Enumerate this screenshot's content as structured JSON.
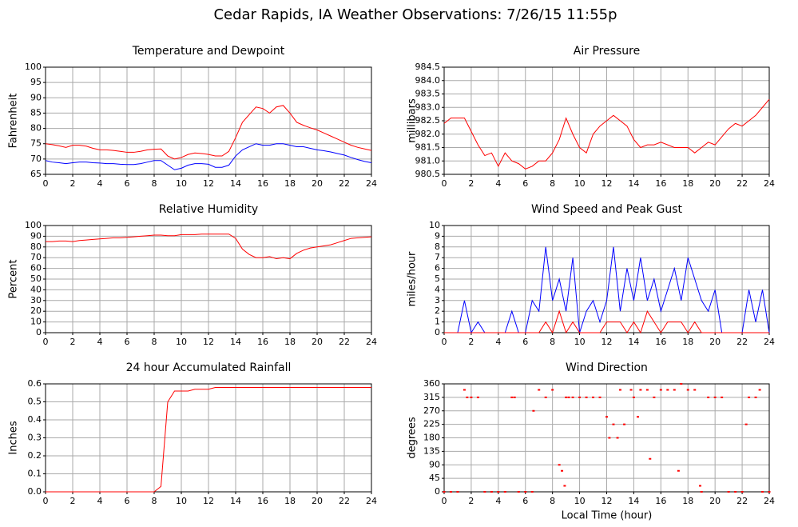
{
  "title": "Cedar Rapids, IA Weather Observations: 7/26/15 11:55p",
  "chart_data": [
    {
      "type": "line",
      "title": "Temperature and Dewpoint",
      "ylabel": "Fahrenheit",
      "x": [
        0,
        0.5,
        1,
        1.5,
        2,
        2.5,
        3,
        3.5,
        4,
        4.5,
        5,
        5.5,
        6,
        6.5,
        7,
        7.5,
        8,
        8.5,
        9,
        9.5,
        10,
        10.5,
        11,
        11.5,
        12,
        12.5,
        13,
        13.5,
        14,
        14.5,
        15,
        15.5,
        16,
        16.5,
        17,
        17.5,
        18,
        18.5,
        19,
        19.5,
        20,
        20.5,
        21,
        21.5,
        22,
        22.5,
        23,
        23.5,
        24
      ],
      "series": [
        {
          "color": "#ff0000",
          "values": [
            75,
            74.7,
            74.3,
            73.8,
            74.5,
            74.5,
            74.2,
            73.5,
            73,
            73,
            72.8,
            72.5,
            72.2,
            72.2,
            72.5,
            73,
            73.2,
            73.3,
            71,
            70,
            70.5,
            71.5,
            72,
            71.8,
            71.5,
            71,
            71,
            72.5,
            77,
            82,
            84.5,
            87,
            86.5,
            85,
            87,
            87.5,
            85,
            82,
            81,
            80.2,
            79.5,
            78.5,
            77.5,
            76.5,
            75.5,
            74.5,
            73.8,
            73.3,
            72.8
          ]
        },
        {
          "color": "#0000ff",
          "values": [
            69.5,
            69,
            68.8,
            68.5,
            68.8,
            69,
            69,
            68.8,
            68.7,
            68.5,
            68.5,
            68.3,
            68.2,
            68.2,
            68.5,
            69,
            69.5,
            69.5,
            68,
            66.5,
            67,
            68,
            68.5,
            68.5,
            68.3,
            67.3,
            67.3,
            68,
            71,
            73,
            74,
            75,
            74.5,
            74.5,
            75,
            75,
            74.5,
            74,
            74,
            73.5,
            73,
            72.7,
            72.3,
            71.8,
            71.3,
            70.5,
            69.8,
            69.2,
            68.8
          ]
        }
      ],
      "xlim": [
        0,
        24
      ],
      "xticks": [
        0,
        2,
        4,
        6,
        8,
        10,
        12,
        14,
        16,
        18,
        20,
        22,
        24
      ],
      "ylim": [
        65,
        100
      ],
      "yticks": [
        65,
        70,
        75,
        80,
        85,
        90,
        95,
        100
      ],
      "grid": true
    },
    {
      "type": "line",
      "title": "Air Pressure",
      "ylabel": "millibars",
      "x": [
        0,
        0.5,
        1,
        1.5,
        2,
        2.5,
        3,
        3.5,
        4,
        4.5,
        5,
        5.5,
        6,
        6.5,
        7,
        7.5,
        8,
        8.5,
        9,
        9.5,
        10,
        10.5,
        11,
        11.5,
        12,
        12.5,
        13,
        13.5,
        14,
        14.5,
        15,
        15.5,
        16,
        16.5,
        17,
        17.5,
        18,
        18.5,
        19,
        19.5,
        20,
        20.5,
        21,
        21.5,
        22,
        22.5,
        23,
        23.5,
        24
      ],
      "series": [
        {
          "color": "#ff0000",
          "values": [
            982.4,
            982.6,
            982.6,
            982.6,
            982.1,
            981.6,
            981.2,
            981.3,
            980.8,
            981.3,
            981,
            980.9,
            980.7,
            980.8,
            981,
            981,
            981.3,
            981.8,
            982.6,
            982,
            981.5,
            981.3,
            982,
            982.3,
            982.5,
            982.7,
            982.5,
            982.3,
            981.8,
            981.5,
            981.6,
            981.6,
            981.7,
            981.6,
            981.5,
            981.5,
            981.5,
            981.3,
            981.5,
            981.7,
            981.6,
            981.9,
            982.2,
            982.4,
            982.3,
            982.5,
            982.7,
            983,
            983.3
          ]
        }
      ],
      "xlim": [
        0,
        24
      ],
      "xticks": [
        0,
        2,
        4,
        6,
        8,
        10,
        12,
        14,
        16,
        18,
        20,
        22,
        24
      ],
      "ylim": [
        980.5,
        984.5
      ],
      "yticks": [
        980.5,
        {
          "value": 981,
          "label": "981.0"
        },
        981.5,
        {
          "value": 982,
          "label": "982.0"
        },
        982.5,
        {
          "value": 983,
          "label": "983.0"
        },
        983.5,
        {
          "value": 984,
          "label": "984.0"
        },
        984.5
      ],
      "grid": true
    },
    {
      "type": "line",
      "title": "Relative Humidity",
      "ylabel": "Percent",
      "x": [
        0,
        0.5,
        1,
        1.5,
        2,
        2.5,
        3,
        3.5,
        4,
        4.5,
        5,
        5.5,
        6,
        6.5,
        7,
        7.5,
        8,
        8.5,
        9,
        9.5,
        10,
        10.5,
        11,
        11.5,
        12,
        12.5,
        13,
        13.5,
        14,
        14.5,
        15,
        15.5,
        16,
        16.5,
        17,
        17.5,
        18,
        18.5,
        19,
        19.5,
        20,
        20.5,
        21,
        21.5,
        22,
        22.5,
        23,
        23.5,
        24
      ],
      "series": [
        {
          "color": "#ff0000",
          "values": [
            85,
            85,
            85.5,
            85.5,
            85,
            86,
            86.5,
            87,
            87.5,
            88,
            88.5,
            88.5,
            89,
            89.5,
            90,
            90.5,
            91,
            91,
            90.5,
            90.5,
            91.5,
            91.5,
            91.5,
            92,
            92,
            92,
            92,
            92,
            88,
            78,
            73,
            70,
            70,
            71,
            69,
            70,
            69,
            74,
            77,
            79,
            80,
            81,
            82,
            84,
            86,
            88,
            88.5,
            89,
            89.5
          ]
        }
      ],
      "xlim": [
        0,
        24
      ],
      "xticks": [
        0,
        2,
        4,
        6,
        8,
        10,
        12,
        14,
        16,
        18,
        20,
        22,
        24
      ],
      "ylim": [
        0,
        100
      ],
      "yticks": [
        0,
        10,
        20,
        30,
        40,
        50,
        60,
        70,
        80,
        90,
        100
      ],
      "grid": true
    },
    {
      "type": "line",
      "title": "Wind Speed and Peak Gust",
      "ylabel": "miles/hour",
      "x": [
        0,
        0.5,
        1,
        1.5,
        2,
        2.5,
        3,
        3.5,
        4,
        4.5,
        5,
        5.5,
        6,
        6.5,
        7,
        7.5,
        8,
        8.5,
        9,
        9.5,
        10,
        10.5,
        11,
        11.5,
        12,
        12.5,
        13,
        13.5,
        14,
        14.5,
        15,
        15.5,
        16,
        16.5,
        17,
        17.5,
        18,
        18.5,
        19,
        19.5,
        20,
        20.5,
        21,
        21.5,
        22,
        22.5,
        23,
        23.5,
        24
      ],
      "series": [
        {
          "color": "#0000ff",
          "values": [
            0,
            0,
            0,
            3,
            0,
            1,
            0,
            0,
            0,
            0,
            2,
            0,
            0,
            3,
            2,
            8,
            3,
            5,
            2,
            7,
            0,
            2,
            3,
            1,
            3,
            8,
            2,
            6,
            3,
            7,
            3,
            5,
            2,
            4,
            6,
            3,
            7,
            5,
            3,
            2,
            4,
            0,
            0,
            0,
            0,
            4,
            1,
            4,
            0
          ]
        },
        {
          "color": "#ff0000",
          "values": [
            0,
            0,
            0,
            0,
            0,
            0,
            0,
            0,
            0,
            0,
            0,
            0,
            0,
            0,
            0,
            1,
            0,
            2,
            0,
            1,
            0,
            0,
            0,
            0,
            1,
            1,
            1,
            0,
            1,
            0,
            2,
            1,
            0,
            1,
            1,
            1,
            0,
            1,
            0,
            0,
            0,
            0,
            0,
            0,
            0,
            0,
            0,
            0,
            0
          ]
        }
      ],
      "xlim": [
        0,
        24
      ],
      "xticks": [
        0,
        2,
        4,
        6,
        8,
        10,
        12,
        14,
        16,
        18,
        20,
        22,
        24
      ],
      "ylim": [
        0,
        10
      ],
      "yticks": [
        0,
        1,
        2,
        3,
        4,
        5,
        6,
        7,
        8,
        9,
        10
      ],
      "grid": true
    },
    {
      "type": "line",
      "title": "24 hour Accumulated Rainfall",
      "ylabel": "Inches",
      "x": [
        0,
        0.5,
        1,
        1.5,
        2,
        2.5,
        3,
        3.5,
        4,
        4.5,
        5,
        5.5,
        6,
        6.5,
        7,
        7.5,
        8,
        8.5,
        9,
        9.5,
        10,
        10.5,
        11,
        11.5,
        12,
        12.5,
        13,
        13.5,
        14,
        14.5,
        15,
        15.5,
        16,
        16.5,
        17,
        17.5,
        18,
        18.5,
        19,
        19.5,
        20,
        20.5,
        21,
        21.5,
        22,
        22.5,
        23,
        23.5,
        24
      ],
      "series": [
        {
          "color": "#ff0000",
          "values": [
            0,
            0,
            0,
            0,
            0,
            0,
            0,
            0,
            0,
            0,
            0,
            0,
            0,
            0,
            0,
            0,
            0,
            0.03,
            0.5,
            0.56,
            0.56,
            0.56,
            0.57,
            0.57,
            0.57,
            0.58,
            0.58,
            0.58,
            0.58,
            0.58,
            0.58,
            0.58,
            0.58,
            0.58,
            0.58,
            0.58,
            0.58,
            0.58,
            0.58,
            0.58,
            0.58,
            0.58,
            0.58,
            0.58,
            0.58,
            0.58,
            0.58,
            0.58,
            0.58
          ]
        }
      ],
      "xlim": [
        0,
        24
      ],
      "xticks": [
        0,
        2,
        4,
        6,
        8,
        10,
        12,
        14,
        16,
        18,
        20,
        22,
        24
      ],
      "ylim": [
        0,
        0.6
      ],
      "yticks": [
        {
          "value": 0,
          "label": "0.0"
        },
        0.1,
        0.2,
        0.3,
        0.4,
        0.5,
        0.6
      ],
      "grid": true
    },
    {
      "type": "scatter",
      "title": "Wind Direction",
      "ylabel": "degrees",
      "xlabel": "Local Time (hour)",
      "x": [
        0,
        0.5,
        1,
        1.5,
        1.7,
        2,
        2.5,
        3,
        3.5,
        4,
        4.5,
        5,
        5.2,
        5.5,
        6,
        6.5,
        6.6,
        7,
        7.5,
        8,
        8.5,
        8.7,
        8.9,
        9,
        9.2,
        9.5,
        10,
        10.5,
        11,
        11.5,
        12,
        12.2,
        12.5,
        12.8,
        13,
        13.3,
        13.8,
        14,
        14.3,
        14.5,
        15,
        15.2,
        15.5,
        16,
        16.5,
        17,
        17.3,
        17.5,
        18,
        18.5,
        18.9,
        19,
        19.5,
        20,
        20.5,
        21,
        21.5,
        22,
        22.3,
        22.5,
        23,
        23.3,
        23.5,
        24
      ],
      "series": [
        {
          "color": "#ff0000",
          "values": [
            0,
            0,
            0,
            340,
            315,
            315,
            315,
            0,
            0,
            0,
            0,
            315,
            315,
            0,
            0,
            0,
            270,
            340,
            315,
            340,
            90,
            70,
            20,
            315,
            315,
            315,
            315,
            315,
            315,
            315,
            250,
            180,
            225,
            180,
            340,
            225,
            340,
            315,
            250,
            340,
            340,
            110,
            315,
            340,
            340,
            340,
            70,
            360,
            340,
            340,
            20,
            0,
            315,
            315,
            315,
            0,
            0,
            0,
            225,
            315,
            315,
            340,
            0,
            0
          ]
        }
      ],
      "xlim": [
        0,
        24
      ],
      "xticks": [
        0,
        2,
        4,
        6,
        8,
        10,
        12,
        14,
        16,
        18,
        20,
        22,
        24
      ],
      "ylim": [
        0,
        360
      ],
      "yticks": [
        0,
        45,
        90,
        135,
        180,
        225,
        270,
        315,
        360
      ],
      "grid": true
    }
  ]
}
